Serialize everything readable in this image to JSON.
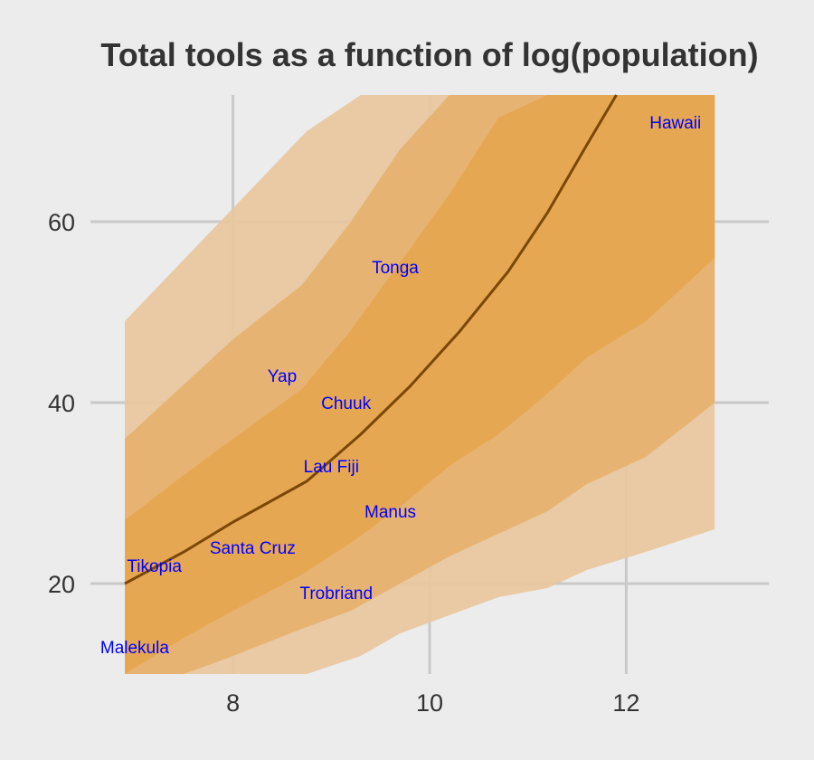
{
  "chart_data": {
    "type": "area",
    "title": "Total tools as a function of log(population)",
    "xlabel": "",
    "ylabel": "",
    "xlim": [
      6.55,
      13.45
    ],
    "ylim": [
      10,
      74
    ],
    "x_ticks": [
      8,
      10,
      12
    ],
    "y_ticks": [
      20,
      40,
      60
    ],
    "grid": true,
    "colors": {
      "background": "#ececec",
      "grid": "#c9c9c9",
      "band_outer": "#e9c79c",
      "band_middle": "#e7b06d",
      "band_inner": "#e6a54f",
      "mean_line": "#7a4706",
      "point_label": "#0000ff",
      "text": "#333333"
    },
    "mean_line": {
      "x": [
        6.9,
        7.5,
        8.0,
        8.75,
        9.3,
        9.8,
        10.3,
        10.8,
        11.2,
        11.6,
        11.9
      ],
      "y": [
        20,
        23.5,
        26.8,
        31.3,
        36.5,
        41.8,
        47.8,
        54.5,
        61,
        68.5,
        74
      ]
    },
    "bands": [
      {
        "name": "outer",
        "x": [
          6.9,
          8.75,
          9.3,
          9.7,
          10.2,
          10.7,
          11.2,
          11.6,
          12.2,
          12.9
        ],
        "lower": [
          10,
          10,
          12,
          14.5,
          16.5,
          18.5,
          19.5,
          21.5,
          23.5,
          26
        ],
        "upper": [
          49,
          70,
          74,
          74,
          74,
          74,
          74,
          74,
          74,
          74
        ]
      },
      {
        "name": "middle",
        "x": [
          6.9,
          7.5,
          8.0,
          8.7,
          9.2,
          9.7,
          10.2,
          10.7,
          11.2,
          11.6,
          12.2,
          12.9
        ],
        "lower": [
          10,
          10,
          12,
          15,
          17,
          20,
          23,
          25.5,
          28,
          31,
          34,
          40
        ],
        "upper": [
          36,
          42,
          47,
          53,
          60,
          68,
          74,
          74,
          74,
          74,
          74,
          74
        ]
      },
      {
        "name": "inner",
        "x": [
          6.9,
          7.5,
          8.0,
          8.7,
          9.2,
          9.7,
          10.2,
          10.7,
          11.2,
          11.6,
          12.2,
          12.9
        ],
        "lower": [
          10,
          14,
          17,
          21,
          24.5,
          28.5,
          33,
          36.5,
          41,
          45,
          49,
          56
        ],
        "upper": [
          27,
          32,
          36,
          41.5,
          48,
          55.5,
          63,
          71.5,
          74,
          74,
          74,
          74
        ]
      }
    ],
    "points": [
      {
        "label": "Malekula",
        "x": 7.0,
        "y": 13
      },
      {
        "label": "Tikopia",
        "x": 7.2,
        "y": 22
      },
      {
        "label": "Santa Cruz",
        "x": 8.2,
        "y": 24
      },
      {
        "label": "Yap",
        "x": 8.5,
        "y": 43
      },
      {
        "label": "Lau Fiji",
        "x": 9.0,
        "y": 33
      },
      {
        "label": "Trobriand",
        "x": 9.05,
        "y": 19
      },
      {
        "label": "Chuuk",
        "x": 9.15,
        "y": 40
      },
      {
        "label": "Manus",
        "x": 9.6,
        "y": 28
      },
      {
        "label": "Tonga",
        "x": 9.65,
        "y": 55
      },
      {
        "label": "Hawaii",
        "x": 12.5,
        "y": 71
      }
    ]
  }
}
